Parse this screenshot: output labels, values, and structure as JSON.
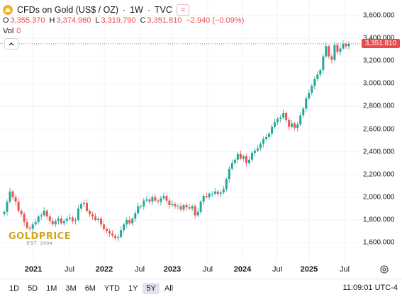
{
  "header": {
    "symbol_title": "CFDs on Gold (US$ / OZ)",
    "interval": "1W",
    "source": "TVC",
    "ohlc": {
      "o_label": "O",
      "o": "3,355.370",
      "h_label": "H",
      "h": "3,374.960",
      "l_label": "L",
      "l": "3,319.790",
      "c_label": "C",
      "c": "3,351.810",
      "change": "−2.940 (−0.09%)"
    },
    "vol_label": "Vol",
    "vol_value": "0"
  },
  "price_scale": {
    "labels": [
      "3,600.000",
      "3,400.000",
      "3,200.000",
      "3,000.000",
      "2,800.000",
      "2,600.000",
      "2,400.000",
      "2,200.000",
      "2,000.000",
      "1,800.000",
      "1,600.000"
    ],
    "current_price": "3,351.810"
  },
  "time_axis": {
    "labels": [
      {
        "text": "2021",
        "year": true
      },
      {
        "text": "Jul",
        "year": false
      },
      {
        "text": "2022",
        "year": true
      },
      {
        "text": "Jul",
        "year": false
      },
      {
        "text": "2023",
        "year": true
      },
      {
        "text": "Jul",
        "year": false
      },
      {
        "text": "2024",
        "year": true
      },
      {
        "text": "Jul",
        "year": false
      },
      {
        "text": "2025",
        "year": true
      },
      {
        "text": "Jul",
        "year": false
      }
    ]
  },
  "bottom_bar": {
    "ranges": [
      "1D",
      "5D",
      "1M",
      "3M",
      "6M",
      "YTD",
      "1Y",
      "5Y",
      "All"
    ],
    "active_range": "5Y",
    "clock": "11:09:01 UTC-4"
  },
  "watermark": {
    "brand": "GOLDPRICE",
    "sub": "EST. 2004"
  },
  "colors": {
    "up": "#26a69a",
    "down": "#ef5350",
    "accent": "#e84b4b",
    "grid": "#f0f3fa"
  },
  "chart_data": {
    "type": "candlestick",
    "title": "CFDs on Gold (US$ / OZ)",
    "ylim": [
      1560,
      3700
    ],
    "x_range": [
      "2020-07",
      "2025-07"
    ],
    "series": [
      {
        "values": [
          1870,
          1960,
          2050,
          2000,
          1960,
          1880,
          1850,
          1780,
          1730,
          1720,
          1760,
          1780,
          1830,
          1840,
          1880,
          1830,
          1790,
          1760,
          1790,
          1810,
          1770,
          1790,
          1810,
          1820,
          1790,
          1800,
          1900,
          1940,
          1950,
          1880,
          1850,
          1830,
          1800,
          1810,
          1760,
          1720,
          1700,
          1680,
          1660,
          1640,
          1650,
          1710,
          1760,
          1800,
          1770,
          1810,
          1860,
          1920,
          1920,
          1970,
          1980,
          1960,
          2000,
          1970,
          1960,
          1990,
          2010,
          1970,
          1930,
          1940,
          1920,
          1920,
          1890,
          1930,
          1910,
          1900,
          1920,
          1840,
          1870,
          1960,
          2010,
          2000,
          2030,
          2030,
          2050,
          2030,
          2040,
          2070,
          2160,
          2250,
          2300,
          2330,
          2380,
          2340,
          2360,
          2300,
          2330,
          2390,
          2410,
          2430,
          2470,
          2510,
          2530,
          2560,
          2620,
          2660,
          2690,
          2700,
          2740,
          2680,
          2620,
          2650,
          2610,
          2640,
          2720,
          2780,
          2870,
          2920,
          2980,
          3040,
          3080,
          3120,
          3240,
          3330,
          3240,
          3210,
          3340,
          3280,
          3310,
          3350,
          3330,
          3351.81
        ]
      }
    ]
  }
}
